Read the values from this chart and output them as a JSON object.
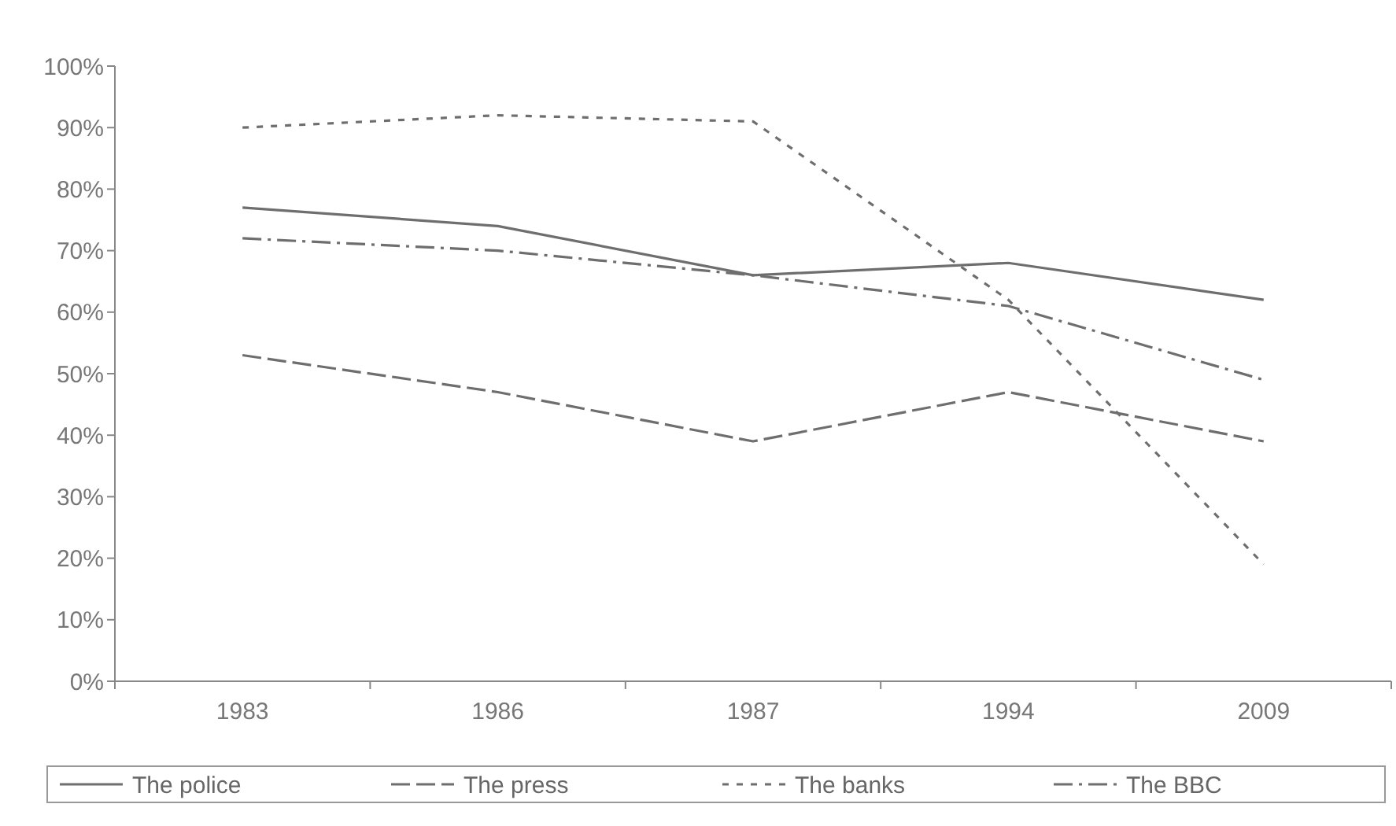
{
  "chart_data": {
    "type": "line",
    "categories": [
      "1983",
      "1986",
      "1987",
      "1994",
      "2009"
    ],
    "ylim": [
      0,
      100
    ],
    "yticks": [
      {
        "value": 0,
        "label": "0%"
      },
      {
        "value": 10,
        "label": "10%"
      },
      {
        "value": 20,
        "label": "20%"
      },
      {
        "value": 30,
        "label": "30%"
      },
      {
        "value": 40,
        "label": "40%"
      },
      {
        "value": 50,
        "label": "50%"
      },
      {
        "value": 60,
        "label": "60%"
      },
      {
        "value": 70,
        "label": "70%"
      },
      {
        "value": 80,
        "label": "80%"
      },
      {
        "value": 90,
        "label": "90%"
      },
      {
        "value": 100,
        "label": "100%"
      }
    ],
    "grid": false,
    "legend": "bottom",
    "marker": "none",
    "series": [
      {
        "name": "The police",
        "color": "#6e6e6e",
        "line_style": "solid",
        "values": [
          77,
          74,
          66,
          68,
          62
        ]
      },
      {
        "name": "The press",
        "color": "#6e6e6e",
        "line_style": "longdash",
        "values": [
          53,
          47,
          39,
          47,
          39
        ]
      },
      {
        "name": "The banks",
        "color": "#6e6e6e",
        "line_style": "dashed",
        "values": [
          90,
          92,
          91,
          62,
          19
        ]
      },
      {
        "name": "The BBC",
        "color": "#6e6e6e",
        "line_style": "dashdot",
        "values": [
          72,
          70,
          66,
          61,
          49
        ]
      }
    ]
  }
}
